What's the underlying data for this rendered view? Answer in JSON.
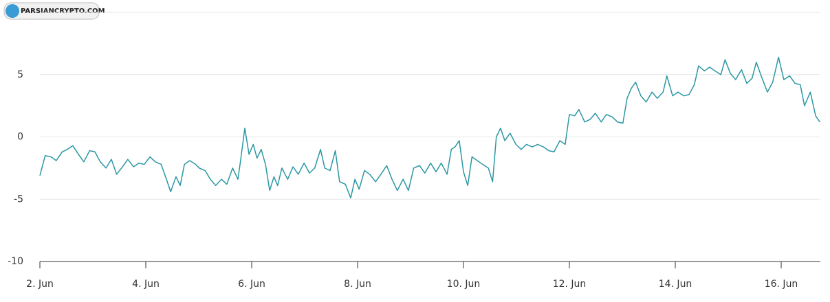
{
  "watermark": "PARSIANCRYPTO.COM",
  "chart_data": {
    "type": "line",
    "x": [
      2.0,
      2.1,
      2.21,
      2.31,
      2.42,
      2.52,
      2.62,
      2.73,
      2.83,
      2.94,
      3.04,
      3.14,
      3.25,
      3.35,
      3.45,
      3.56,
      3.66,
      3.77,
      3.87,
      3.97,
      4.08,
      4.18,
      4.29,
      4.39,
      4.47,
      4.57,
      4.65,
      4.73,
      4.83,
      4.94,
      5.01,
      5.12,
      5.22,
      5.32,
      5.43,
      5.53,
      5.64,
      5.74,
      5.79,
      5.87,
      5.95,
      6.03,
      6.1,
      6.18,
      6.26,
      6.34,
      6.42,
      6.49,
      6.57,
      6.68,
      6.78,
      6.88,
      6.99,
      7.09,
      7.19,
      7.3,
      7.38,
      7.48,
      7.58,
      7.66,
      7.77,
      7.87,
      7.95,
      8.03,
      8.13,
      8.23,
      8.34,
      8.44,
      8.55,
      8.65,
      8.75,
      8.86,
      8.96,
      9.06,
      9.17,
      9.27,
      9.38,
      9.48,
      9.58,
      9.69,
      9.77,
      9.84,
      9.92,
      10.0,
      10.08,
      10.16,
      10.26,
      10.36,
      10.47,
      10.55,
      10.62,
      10.7,
      10.78,
      10.88,
      10.99,
      11.09,
      11.19,
      11.3,
      11.4,
      11.51,
      11.61,
      11.71,
      11.82,
      11.92,
      12.0,
      12.1,
      12.18,
      12.29,
      12.39,
      12.49,
      12.6,
      12.7,
      12.81,
      12.91,
      13.01,
      13.09,
      13.17,
      13.25,
      13.35,
      13.45,
      13.56,
      13.66,
      13.77,
      13.84,
      13.95,
      14.05,
      14.16,
      14.26,
      14.36,
      14.44,
      14.55,
      14.65,
      14.75,
      14.86,
      14.94,
      15.04,
      15.14,
      15.25,
      15.35,
      15.45,
      15.53,
      15.64,
      15.74,
      15.84,
      15.95,
      16.05,
      16.16,
      16.26,
      16.36,
      16.44,
      16.55,
      16.65,
      16.73
    ],
    "series": [
      {
        "color": "#2a97a3",
        "values": [
          -3.1,
          -1.5,
          -1.6,
          -1.9,
          -1.2,
          -1.0,
          -0.7,
          -1.4,
          -2.0,
          -1.1,
          -1.2,
          -2.0,
          -2.5,
          -1.8,
          -3.0,
          -2.4,
          -1.8,
          -2.4,
          -2.1,
          -2.2,
          -1.6,
          -2.0,
          -2.2,
          -3.4,
          -4.4,
          -3.2,
          -3.9,
          -2.2,
          -1.9,
          -2.2,
          -2.5,
          -2.7,
          -3.4,
          -3.9,
          -3.4,
          -3.8,
          -2.5,
          -3.4,
          -1.9,
          0.7,
          -1.4,
          -0.6,
          -1.7,
          -1.0,
          -2.2,
          -4.3,
          -3.2,
          -3.9,
          -2.5,
          -3.4,
          -2.4,
          -3.0,
          -2.1,
          -2.9,
          -2.5,
          -1.0,
          -2.5,
          -2.7,
          -1.1,
          -3.6,
          -3.8,
          -4.9,
          -3.4,
          -4.2,
          -2.7,
          -3.0,
          -3.6,
          -3.0,
          -2.3,
          -3.4,
          -4.3,
          -3.4,
          -4.3,
          -2.5,
          -2.3,
          -2.9,
          -2.1,
          -2.8,
          -2.1,
          -3.0,
          -1.0,
          -0.8,
          -0.3,
          -2.8,
          -3.9,
          -1.6,
          -1.9,
          -2.2,
          -2.5,
          -3.6,
          0.0,
          0.7,
          -0.3,
          0.3,
          -0.6,
          -1.0,
          -0.6,
          -0.8,
          -0.6,
          -0.8,
          -1.1,
          -1.2,
          -0.3,
          -0.6,
          1.8,
          1.7,
          2.2,
          1.2,
          1.4,
          1.9,
          1.2,
          1.8,
          1.6,
          1.2,
          1.1,
          3.1,
          3.9,
          4.4,
          3.3,
          2.8,
          3.6,
          3.1,
          3.6,
          4.9,
          3.3,
          3.6,
          3.3,
          3.4,
          4.2,
          5.7,
          5.3,
          5.6,
          5.3,
          5.0,
          6.2,
          5.1,
          4.6,
          5.4,
          4.3,
          4.7,
          6.0,
          4.7,
          3.6,
          4.4,
          6.4,
          4.6,
          4.9,
          4.3,
          4.2,
          2.5,
          3.6,
          1.7,
          1.2
        ]
      }
    ],
    "xlim": [
      2,
      16.74
    ],
    "xticks": [
      {
        "value": 2,
        "label": "2. Jun"
      },
      {
        "value": 4,
        "label": "4. Jun"
      },
      {
        "value": 6,
        "label": "6. Jun"
      },
      {
        "value": 8,
        "label": "8. Jun"
      },
      {
        "value": 10,
        "label": "10. Jun"
      },
      {
        "value": 12,
        "label": "12. Jun"
      },
      {
        "value": 14,
        "label": "14. Jun"
      },
      {
        "value": 16,
        "label": "16. Jun"
      }
    ],
    "ylim": [
      -10,
      10
    ],
    "yticks": [
      -10,
      -5,
      0,
      5
    ],
    "grid": true
  }
}
